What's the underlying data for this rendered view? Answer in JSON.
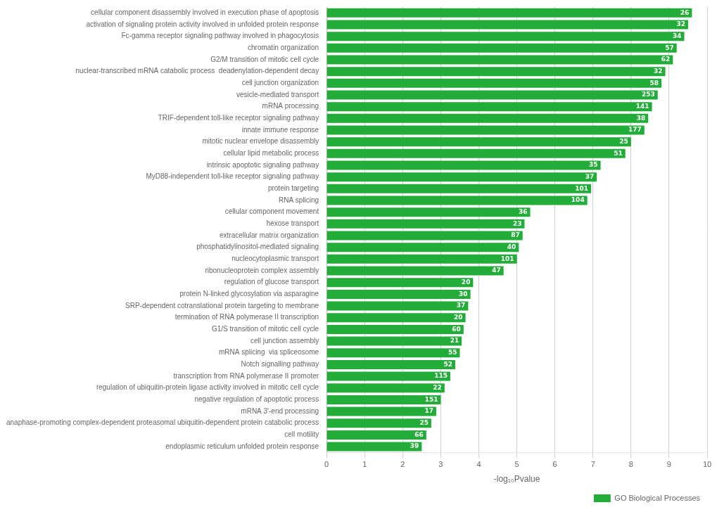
{
  "chart_data": {
    "type": "bar",
    "orientation": "horizontal",
    "categories": [
      "cellular component disassembly involved in execution phase of apoptosis",
      "activation of signaling protein activity involved in unfolded protein response",
      "Fc-gamma receptor signaling pathway involved in phagocytosis",
      "chromatin organization",
      "G2/M transition of mitotic cell cycle",
      "nuclear-transcribed mRNA catabolic process  deadenylation-dependent decay",
      "cell junction organization",
      "vesicle-mediated transport",
      "mRNA processing",
      "TRIF-dependent toll-like receptor signaling pathway",
      "innate immune response",
      "mitotic nuclear envelope disassembly",
      "cellular lipid metabolic process",
      "intrinsic apoptotic signaling pathway",
      "MyD88-independent toll-like receptor signaling pathway",
      "protein targeting",
      "RNA splicing",
      "cellular component movement",
      "hexose transport",
      "extracellular matrix organization",
      "phosphatidylinositol-mediated signaling",
      "nucleocytoplasmic transport",
      "ribonucleoprotein complex assembly",
      "regulation of glucose transport",
      "protein N-linked glycosylation via asparagine",
      "SRP-dependent cotranslational protein targeting to membrane",
      "termination of RNA polymerase II transcription",
      "G1/S transition of mitotic cell cycle",
      "cell junction assembly",
      "mRNA splicing  via spliceosome",
      "Notch signalling pathway",
      "transcription from RNA polymerase II promoter",
      "regulation of ubiquitin-protein ligase activity involved in mitotic cell cycle",
      "negative regulation of apoptotic process",
      "mRNA 3'-end processing",
      "anaphase-promoting complex-dependent proteasomal ubiquitin-dependent protein catabolic process",
      "cell motility",
      "endoplasmic reticulum unfolded protein response"
    ],
    "series": [
      {
        "name": "GO Biological Processes",
        "color": "#22ac38",
        "values": [
          9.6,
          9.5,
          9.4,
          9.2,
          9.1,
          8.9,
          8.8,
          8.7,
          8.55,
          8.45,
          8.35,
          8.0,
          7.85,
          7.2,
          7.1,
          6.95,
          6.85,
          5.35,
          5.2,
          5.15,
          5.05,
          5.0,
          4.65,
          3.85,
          3.78,
          3.72,
          3.65,
          3.6,
          3.55,
          3.5,
          3.38,
          3.25,
          3.1,
          3.0,
          2.88,
          2.75,
          2.62,
          2.5
        ],
        "gene_counts": [
          26,
          32,
          34,
          57,
          62,
          32,
          58,
          253,
          141,
          38,
          177,
          25,
          51,
          35,
          37,
          101,
          104,
          36,
          23,
          87,
          40,
          101,
          47,
          20,
          30,
          37,
          20,
          60,
          21,
          55,
          52,
          115,
          22,
          151,
          17,
          25,
          66,
          39
        ]
      }
    ],
    "xlabel": "-log₁₀Pvalue",
    "xlim": [
      0,
      10
    ],
    "xticks": [
      0,
      1,
      2,
      3,
      4,
      5,
      6,
      7,
      8,
      9,
      10
    ],
    "grid": true,
    "legend": "lower right"
  }
}
